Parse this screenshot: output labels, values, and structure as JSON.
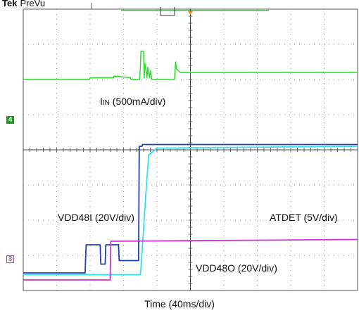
{
  "header": {
    "brand": "Tek",
    "mode": "PreVu"
  },
  "chart_data": {
    "type": "line",
    "title": "",
    "xlabel": "Time (40ms/div)",
    "ylabel": "",
    "grid": true,
    "grid_divisions": {
      "x": 10,
      "y": 8
    },
    "x_unit": "div",
    "y_unit": "div",
    "xlim": [
      0,
      10
    ],
    "ylim": [
      0,
      8
    ],
    "series": [
      {
        "name": "IIN (500mA/div)",
        "label_main": "I",
        "label_sub": "IN",
        "label_rest": " (500mA/div)",
        "color": "#22dd22",
        "channel_marker": "4",
        "x": [
          0,
          1.98,
          2.0,
          2.7,
          2.72,
          3.2,
          3.22,
          3.48,
          3.5,
          3.52,
          3.6,
          3.62,
          3.64,
          3.7,
          3.72,
          3.78,
          3.8,
          3.85,
          3.9,
          3.92,
          3.96,
          3.98,
          4.05,
          4.5,
          4.52,
          4.56,
          4.58,
          4.7,
          4.75,
          4.9,
          5.0,
          5.05,
          5.1,
          5.14,
          5.18,
          5.2,
          5.5,
          10
        ],
        "y": [
          6.0,
          6.0,
          6.05,
          6.05,
          6.1,
          6.05,
          6.0,
          6.0,
          6.3,
          6.8,
          6.8,
          6.05,
          6.45,
          6.05,
          6.35,
          6.05,
          6.25,
          6.0,
          6.0,
          6.0,
          6.0,
          6.0,
          6.0,
          6.0,
          6.0,
          6.5,
          6.3,
          6.2,
          6.2,
          6.2,
          6.2,
          6.2,
          6.2,
          6.2,
          6.2,
          6.2,
          6.2,
          6.2
        ]
      },
      {
        "name": "VDD48I (20V/div)",
        "color": "#1f3fbf",
        "channel_marker": "",
        "x": [
          0,
          1.85,
          1.88,
          2.3,
          2.32,
          2.45,
          2.47,
          2.85,
          2.87,
          3.45,
          3.47,
          3.55,
          3.57,
          10
        ],
        "y": [
          0.5,
          0.5,
          1.3,
          1.3,
          0.75,
          0.75,
          1.3,
          1.3,
          0.85,
          0.85,
          4.1,
          4.1,
          4.15,
          4.15
        ]
      },
      {
        "name": "VDD48O (20V/div)",
        "color": "#33e0f0",
        "channel_marker": "",
        "x": [
          0,
          3.5,
          3.52,
          3.65,
          3.75,
          4.0,
          10
        ],
        "y": [
          0.45,
          0.45,
          0.6,
          2.5,
          3.85,
          4.05,
          4.1
        ]
      },
      {
        "name": "ATDET (5V/div)",
        "color": "#cc33cc",
        "channel_marker": "3",
        "x": [
          0,
          2.6,
          2.62,
          10
        ],
        "y": [
          0.3,
          0.3,
          1.4,
          1.45
        ]
      }
    ]
  }
}
